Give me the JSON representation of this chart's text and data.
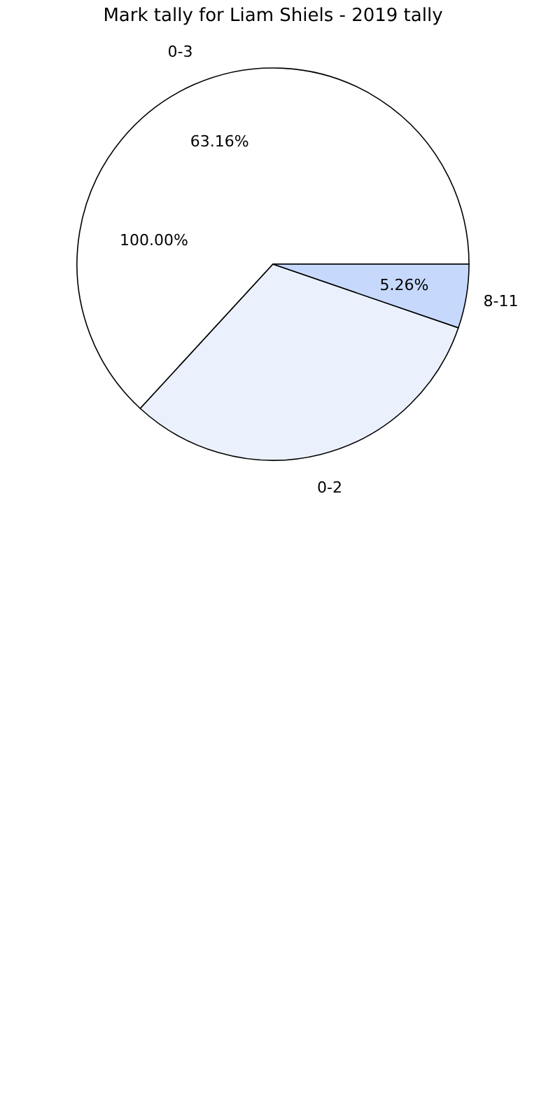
{
  "chart_data": {
    "type": "pie",
    "title": "Mark tally for Liam Shiels - 2019 tally",
    "categories": [
      "0-3",
      "0-2",
      "8-11"
    ],
    "values": [
      63.16,
      31.58,
      5.26
    ],
    "colors": [
      "#ffffff",
      "#eaf1fd",
      "#c6d9fd"
    ],
    "value_labels": [
      "63.16%",
      null,
      "5.26%"
    ],
    "annotations": [
      "100.00%"
    ]
  }
}
